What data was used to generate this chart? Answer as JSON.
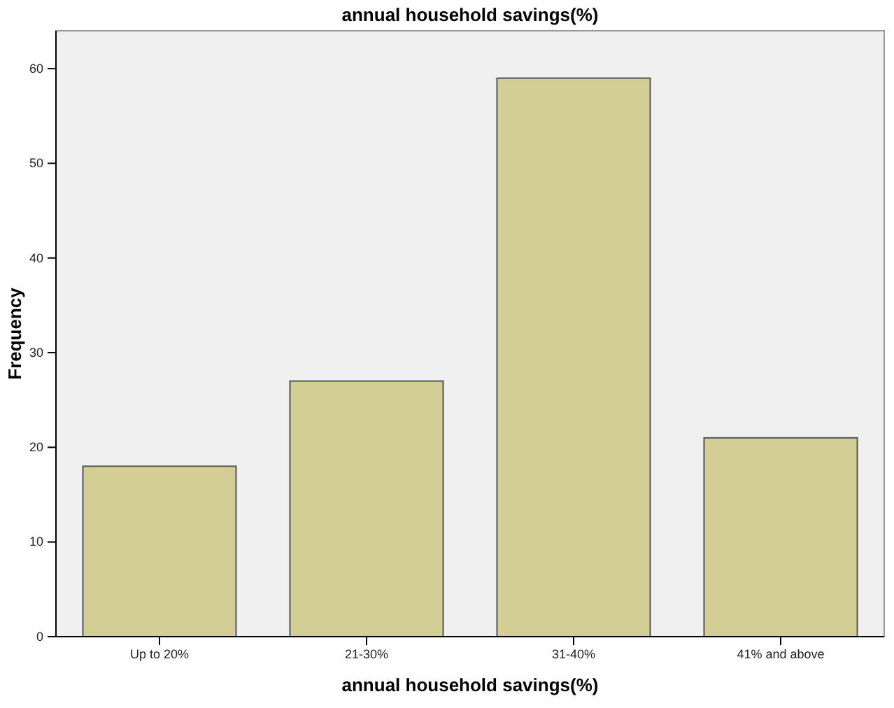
{
  "chart_data": {
    "type": "bar",
    "title": "annual household savings(%)",
    "xlabel": "annual household savings(%)",
    "ylabel": "Frequency",
    "categories": [
      "Up to 20%",
      "21-30%",
      "31-40%",
      "41% and above"
    ],
    "values": [
      18,
      27,
      59,
      21
    ],
    "color": "#d3cd96",
    "ylim": [
      0,
      64
    ],
    "yticks": [
      0,
      10,
      20,
      30,
      40,
      50,
      60
    ],
    "grid": false
  }
}
